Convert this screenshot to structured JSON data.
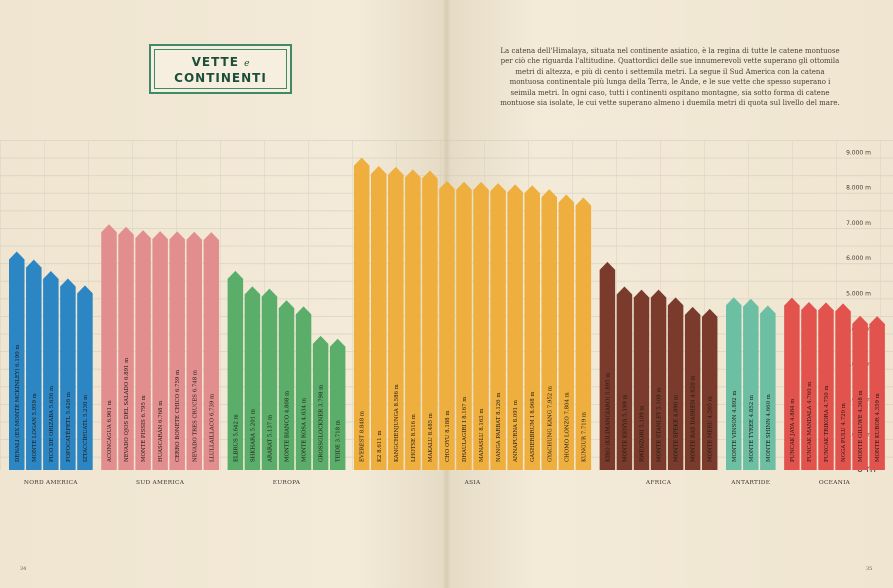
{
  "title": {
    "line1": "VETTE",
    "conj": "e",
    "line2": "CONTINENTI"
  },
  "intro": "La catena dell'Himalaya, situata nel continente asiatico, è la regina di tutte le catene montuose per ciò che riguarda l'altitudine. Quattordici delle sue innumerevoli vette superano gli ottomila metri di altezza, e più di cento i settemila metri. La segue il Sud America con la catena montuosa continentale più lunga della Terra, le Ande, e le sue vette che spesso superano i seimila metri. In ogni caso, tutti i continenti ospitano montagne, sia sotto forma di catene montuose sia isolate, le cui vette superano almeno i duemila metri di quota sul livello del mare.",
  "page_numbers": {
    "left": "34",
    "right": "35"
  },
  "chart_data": {
    "type": "bar",
    "ylim": [
      0,
      9000
    ],
    "y_ticks": [
      {
        "value": 1000,
        "label": "1.000 m"
      },
      {
        "value": 2000,
        "label": "2.000 m"
      },
      {
        "value": 3000,
        "label": "3.000 m"
      },
      {
        "value": 4000,
        "label": "4.000 m"
      },
      {
        "value": 5000,
        "label": "5.000 m"
      },
      {
        "value": 6000,
        "label": "6.000 m"
      },
      {
        "value": 7000,
        "label": "7.000 m"
      },
      {
        "value": 8000,
        "label": "8.000 m"
      },
      {
        "value": 9000,
        "label": "9.000 m"
      }
    ],
    "zero_label": "0 m",
    "groups": [
      {
        "name": "NORD AMERICA",
        "color": "#2d86c4",
        "mountains": [
          {
            "label": "DENALI (EX MONTE MCKINLEY) 6.190 m",
            "value": 6190
          },
          {
            "label": "MONTE LOGAN 5.959 m",
            "value": 5959
          },
          {
            "label": "PICO DE ORIZABA 5.636 m",
            "value": 5636
          },
          {
            "label": "POPOCATÉPETL 5.426 m",
            "value": 5426
          },
          {
            "label": "IZTACCÍHUATL 5.230 m",
            "value": 5230
          }
        ]
      },
      {
        "name": "SUD AMERICA",
        "color": "#e38e8e",
        "mountains": [
          {
            "label": "ACONCAGUA 6.961 m",
            "value": 6961
          },
          {
            "label": "NEVADO OJOS DEL SALADO 6.891 m",
            "value": 6891
          },
          {
            "label": "MONTE PISSIS 6.795 m",
            "value": 6795
          },
          {
            "label": "HUASCARÁN 6.768 m",
            "value": 6768
          },
          {
            "label": "CERRO BONETE CHICO 6.759 m",
            "value": 6759
          },
          {
            "label": "NEVADO TRES CRUCES 6.748 m",
            "value": 6748
          },
          {
            "label": "LLULLAILLACO 6.739 m",
            "value": 6739
          }
        ]
      },
      {
        "name": "EUROPA",
        "color": "#5aae6a",
        "mountains": [
          {
            "label": "ELBRUS 5.642 m",
            "value": 5642
          },
          {
            "label": "SHKHARA 5.201 m",
            "value": 5201
          },
          {
            "label": "ARARAT 5.137 m",
            "value": 5137
          },
          {
            "label": "MONTE BIANCO 4.808 m",
            "value": 4808
          },
          {
            "label": "MONTE ROSA 4.634 m",
            "value": 4634
          },
          {
            "label": "GROSSGLOCKNER 3.798 m",
            "value": 3798
          },
          {
            "label": "TEIDE 3.718 m",
            "value": 3718
          }
        ]
      },
      {
        "name": "ASIA",
        "color": "#eeaf3e",
        "mountains": [
          {
            "label": "EVEREST 8.848 m",
            "value": 8848
          },
          {
            "label": "K2 8.611 m",
            "value": 8611
          },
          {
            "label": "KANGCHENJUNGA 8.586 m",
            "value": 8586
          },
          {
            "label": "LHOTSE 8.516 m",
            "value": 8516
          },
          {
            "label": "MAKALU 8.485 m",
            "value": 8485
          },
          {
            "label": "CHO OYU 8.188 m",
            "value": 8188
          },
          {
            "label": "DHAULAGIRI I 8.167 m",
            "value": 8167
          },
          {
            "label": "MANASLU 8.163 m",
            "value": 8163
          },
          {
            "label": "NANGA PARBAT 8.126 m",
            "value": 8126
          },
          {
            "label": "ANNAPURNA 8.091 m",
            "value": 8091
          },
          {
            "label": "GASHERBRUM I 8.068 m",
            "value": 8068
          },
          {
            "label": "GYACHUNG KANG 7.952 m",
            "value": 7952
          },
          {
            "label": "CHOMO LONZO 7.804 m",
            "value": 7804
          },
          {
            "label": "KUNGUR 7.719 m",
            "value": 7719
          }
        ]
      },
      {
        "name": "AFRICA",
        "color": "#7a3a2c",
        "mountains": [
          {
            "label": "KIBO (KILIMANGIARO) 5.895 m",
            "value": 5895
          },
          {
            "label": "MONTE KENYA 5.199 m",
            "value": 5199
          },
          {
            "label": "RWENZORI 5.109 m",
            "value": 5109
          },
          {
            "label": "MONTE STANLEY 5.109 m",
            "value": 5109
          },
          {
            "label": "MONTE SPEKE 4.890 m",
            "value": 4890
          },
          {
            "label": "MONTE RAS DASHEN 4.620 m",
            "value": 4620
          },
          {
            "label": "MONTE MERU 4.565 m",
            "value": 4565
          }
        ]
      },
      {
        "name": "ANTARTIDE",
        "color": "#6dbfa4",
        "mountains": [
          {
            "label": "MONTE VINSON 4.892 m",
            "value": 4892
          },
          {
            "label": "MONTE TYREE 4.852 m",
            "value": 4852
          },
          {
            "label": "MONTE SHINN 4.660 m",
            "value": 4660
          }
        ]
      },
      {
        "name": "OCEANIA",
        "color": "#e2534e",
        "mountains": [
          {
            "label": "PUNCAK JAYA 4.884 m",
            "value": 4884
          },
          {
            "label": "PUNCAK MANDALA 4.760 m",
            "value": 4760
          },
          {
            "label": "PUNCAK TRIKORA 4.750 m",
            "value": 4750
          },
          {
            "label": "NGGA PULU 4.720 m",
            "value": 4720
          },
          {
            "label": "MONTE GILUWE 4.368 m",
            "value": 4368
          },
          {
            "label": "MONTE KUBOR 4.359 m",
            "value": 4359
          }
        ]
      }
    ]
  }
}
